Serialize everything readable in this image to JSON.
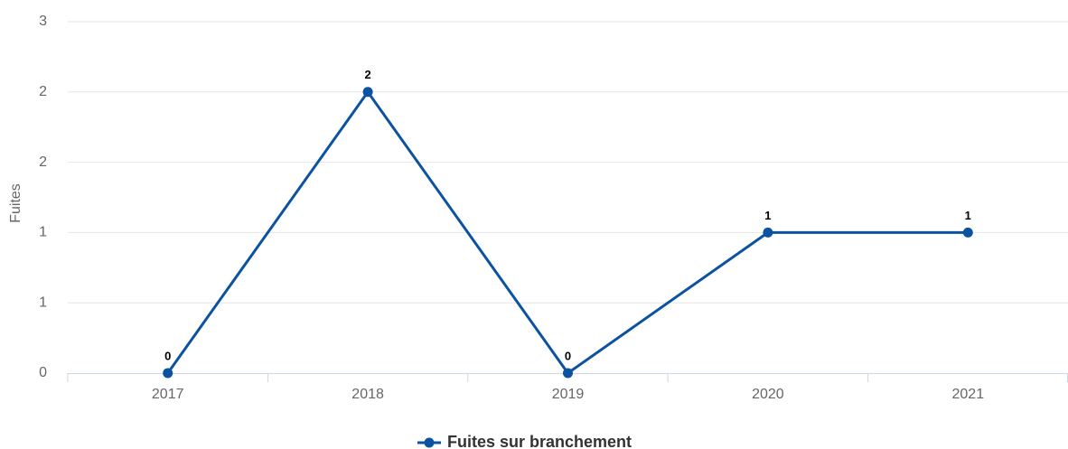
{
  "chart_data": {
    "type": "line",
    "y_label": "Fuites",
    "categories": [
      "2017",
      "2018",
      "2019",
      "2020",
      "2021"
    ],
    "series": [
      {
        "name": "Fuites sur branchement",
        "color": "#0b52a0",
        "values": [
          0,
          2,
          0,
          1,
          1
        ]
      }
    ],
    "ylim": [
      0,
      2.5
    ],
    "yticks": [
      0,
      {
        "value": 0.5,
        "label": "1"
      },
      {
        "value": 1,
        "label": "1"
      },
      {
        "value": 1.5,
        "label": "2"
      },
      {
        "value": 2,
        "label": "2"
      },
      {
        "value": 2.5,
        "label": "3"
      }
    ],
    "grid": true,
    "legend": "bottom"
  }
}
